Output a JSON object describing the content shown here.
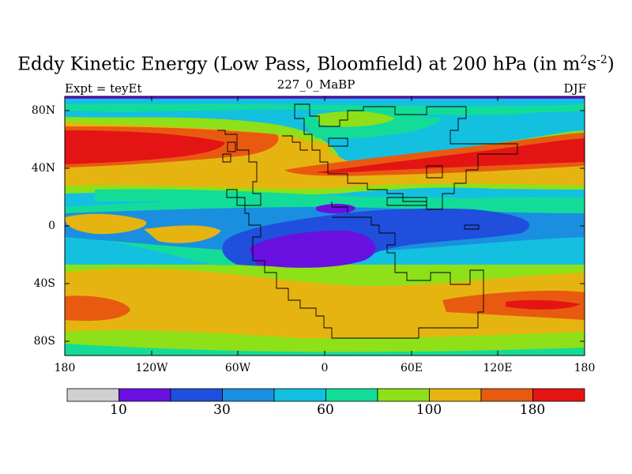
{
  "title": "Eddy Kinetic Energy (Low Pass, Bloomfield) at 200 hPa (in m",
  "title_sup1": "2",
  "title_mid": "s",
  "title_sup2": "-2",
  "title_end": ")",
  "subtitle_left": "Expt = teyEt",
  "subtitle_center": "227_0_MaBP",
  "subtitle_right": "DJF",
  "y_ticks": [
    "80N",
    "40N",
    "0",
    "40S",
    "80S"
  ],
  "x_ticks": [
    "180",
    "120W",
    "60W",
    "0",
    "60E",
    "120E",
    "180"
  ],
  "colorbar": {
    "colors": [
      "#d0d0d0",
      "#6a10e0",
      "#1f4fdc",
      "#1a8fe0",
      "#13c0e0",
      "#13dc98",
      "#8ee018",
      "#e6b410",
      "#e85a10",
      "#e41414"
    ],
    "labels": [
      "10",
      "30",
      "60",
      "100",
      "180"
    ]
  },
  "map_colors": {
    "red": "#e41414",
    "orange": "#e85a10",
    "yellow": "#e6b410",
    "lime": "#8ee018",
    "green": "#13dc98",
    "cyan": "#13c0e0",
    "lightblue": "#1a8fe0",
    "blue": "#1f4fdc",
    "purple": "#6a10e0"
  }
}
